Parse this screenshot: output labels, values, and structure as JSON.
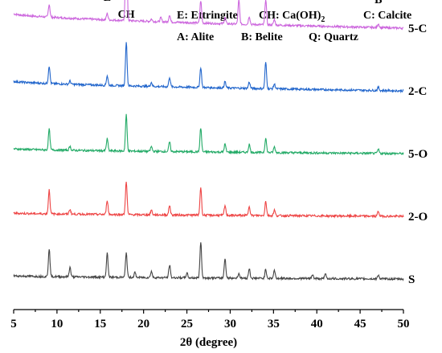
{
  "chart_data": {
    "type": "line",
    "xlabel": "2θ (degree)",
    "xlim": [
      5,
      50
    ],
    "xticks": [
      5,
      10,
      15,
      20,
      25,
      30,
      35,
      40,
      45,
      50
    ],
    "grid": false,
    "legend_lines": [
      [
        {
          "text": "E: Ettringite"
        },
        {
          "text": "CH: Ca(OH)",
          "sub": "2"
        },
        {
          "text": "C: Calcite"
        }
      ],
      [
        {
          "text": "A: Alite"
        },
        {
          "text": "B: Belite"
        },
        {
          "text": "Q: Quartz"
        }
      ]
    ],
    "legend_position": "top-right",
    "peak_labels": [
      {
        "text": "E",
        "x": 9.1
      },
      {
        "text": "E",
        "x": 15.8
      },
      {
        "text": "CH",
        "x": 18.0
      },
      {
        "text": "C",
        "x": 23.0
      },
      {
        "text": "Q",
        "x": 26.6
      },
      {
        "text": "A+B",
        "x": 31.0
      },
      {
        "text": "CH",
        "x": 34.1
      },
      {
        "text": "B",
        "x": 47.1
      }
    ],
    "series": [
      {
        "name": "5-C",
        "color": "#cc66dd",
        "baseline_start": 28,
        "baseline_end": 10,
        "offset": 340,
        "peaks": [
          [
            9.1,
            16
          ],
          [
            15.8,
            8
          ],
          [
            18.0,
            125
          ],
          [
            20.9,
            3
          ],
          [
            22.0,
            5
          ],
          [
            23.0,
            9
          ],
          [
            26.6,
            28
          ],
          [
            29.4,
            8
          ],
          [
            31.0,
            30
          ],
          [
            32.2,
            10
          ],
          [
            34.1,
            32
          ],
          [
            35.1,
            7
          ],
          [
            47.1,
            5
          ]
        ]
      },
      {
        "name": "2-C",
        "color": "#2266cc",
        "baseline_start": 22,
        "baseline_end": 10,
        "offset": 262,
        "peaks": [
          [
            9.1,
            22
          ],
          [
            11.5,
            4
          ],
          [
            15.8,
            12
          ],
          [
            18.0,
            55
          ],
          [
            20.9,
            5
          ],
          [
            23.0,
            12
          ],
          [
            26.6,
            25
          ],
          [
            29.4,
            8
          ],
          [
            32.2,
            8
          ],
          [
            34.1,
            33
          ],
          [
            35.1,
            6
          ],
          [
            47.1,
            4
          ]
        ]
      },
      {
        "name": "5-O",
        "color": "#22aa66",
        "baseline_start": 16,
        "baseline_end": 10,
        "offset": 184,
        "peaks": [
          [
            9.1,
            26
          ],
          [
            11.5,
            5
          ],
          [
            15.8,
            15
          ],
          [
            18.0,
            45
          ],
          [
            20.9,
            6
          ],
          [
            23.0,
            12
          ],
          [
            26.6,
            30
          ],
          [
            29.4,
            10
          ],
          [
            32.2,
            10
          ],
          [
            34.1,
            18
          ],
          [
            35.1,
            7
          ],
          [
            47.1,
            5
          ]
        ]
      },
      {
        "name": "2-O",
        "color": "#ee4444",
        "baseline_start": 14,
        "baseline_end": 10,
        "offset": 106,
        "peaks": [
          [
            9.1,
            30
          ],
          [
            11.5,
            6
          ],
          [
            15.8,
            18
          ],
          [
            18.0,
            42
          ],
          [
            20.9,
            6
          ],
          [
            23.0,
            12
          ],
          [
            26.6,
            35
          ],
          [
            29.4,
            12
          ],
          [
            32.2,
            12
          ],
          [
            34.1,
            18
          ],
          [
            35.1,
            7
          ],
          [
            47.1,
            6
          ]
        ]
      },
      {
        "name": "S",
        "color": "#444444",
        "baseline_start": 14,
        "baseline_end": 10,
        "offset": 28,
        "peaks": [
          [
            9.1,
            35
          ],
          [
            11.5,
            12
          ],
          [
            15.8,
            30
          ],
          [
            18.0,
            31
          ],
          [
            19.0,
            6
          ],
          [
            20.9,
            8
          ],
          [
            23.0,
            16
          ],
          [
            25.0,
            6
          ],
          [
            26.6,
            45
          ],
          [
            29.4,
            25
          ],
          [
            31.0,
            6
          ],
          [
            32.2,
            12
          ],
          [
            34.1,
            11
          ],
          [
            35.1,
            10
          ],
          [
            39.5,
            5
          ],
          [
            41.0,
            6
          ],
          [
            47.1,
            5
          ]
        ]
      }
    ]
  }
}
